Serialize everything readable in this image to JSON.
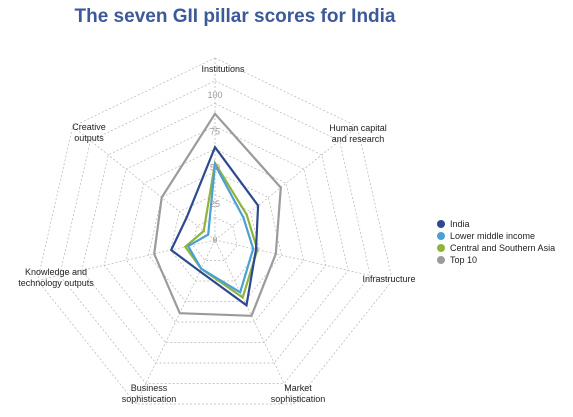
{
  "chart_data": {
    "type": "radar",
    "title": "The seven GII pillar scores for India",
    "axes": [
      [
        "Institutions"
      ],
      [
        "Human capital",
        "and research"
      ],
      [
        "Infrastructure"
      ],
      [
        "Market",
        "sophistication"
      ],
      [
        "Business",
        "sophistication"
      ],
      [
        "Knowledge and",
        "technology outputs"
      ],
      [
        "Creative",
        "outputs"
      ]
    ],
    "rlim": [
      0,
      100
    ],
    "ticks": [
      "0",
      "25",
      "50",
      "75",
      "100"
    ],
    "grid": true,
    "legend_position": "right",
    "series": [
      {
        "name": "Top 10",
        "color": "#9b9b9b",
        "values": [
          87,
          58,
          43,
          58,
          56,
          43,
          47
        ]
      },
      {
        "name": "Central and Southern Asia",
        "color": "#8fb43a",
        "values": [
          53,
          28,
          30,
          44,
          22,
          21,
          10
        ]
      },
      {
        "name": "Lower middle income",
        "color": "#4a9fd4",
        "values": [
          52,
          25,
          27,
          40,
          22,
          19,
          6
        ]
      },
      {
        "name": "India",
        "color": "#2e4a8f",
        "values": [
          64,
          38,
          29,
          50,
          24,
          31,
          25
        ]
      }
    ],
    "legend": [
      {
        "name": "India",
        "color": "#2e4a8f"
      },
      {
        "name": "Lower middle income",
        "color": "#4a9fd4"
      },
      {
        "name": "Central and Southern Asia",
        "color": "#8fb43a"
      },
      {
        "name": "Top 10",
        "color": "#9b9b9b"
      }
    ]
  }
}
